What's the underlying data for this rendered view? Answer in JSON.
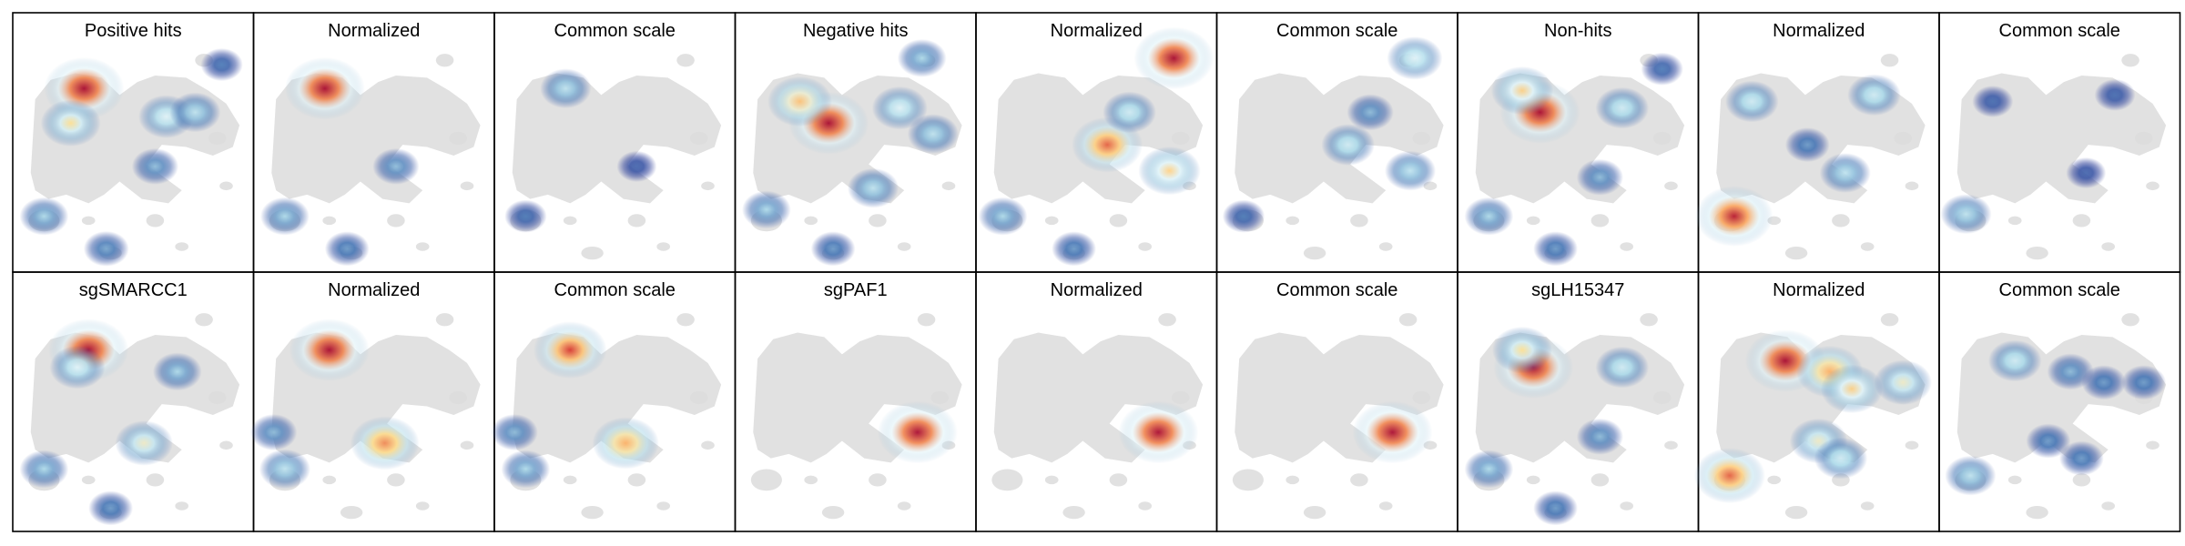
{
  "chart_data": {
    "type": "heatmap",
    "title": "",
    "grid": false,
    "colormap": "RdYlBu_r",
    "background_color": "#dcdcdc",
    "rows": [
      {
        "panels": [
          {
            "title": "Positive hits",
            "density": [
              [
                0.28,
                0.19,
                1.0
              ],
              [
                0.22,
                0.35,
                0.55
              ],
              [
                0.65,
                0.32,
                0.45
              ],
              [
                0.78,
                0.3,
                0.35
              ],
              [
                0.6,
                0.55,
                0.25
              ],
              [
                0.1,
                0.78,
                0.3
              ],
              [
                0.38,
                0.93,
                0.22
              ],
              [
                0.9,
                0.08,
                0.15
              ]
            ]
          },
          {
            "title": "Normalized",
            "density": [
              [
                0.28,
                0.19,
                1.0
              ],
              [
                0.1,
                0.78,
                0.3
              ],
              [
                0.6,
                0.55,
                0.25
              ],
              [
                0.38,
                0.93,
                0.2
              ]
            ]
          },
          {
            "title": "Common scale",
            "density": [
              [
                0.28,
                0.19,
                0.35
              ],
              [
                0.1,
                0.78,
                0.15
              ],
              [
                0.6,
                0.55,
                0.1
              ]
            ]
          },
          {
            "title": "Negative hits",
            "density": [
              [
                0.38,
                0.35,
                1.0
              ],
              [
                0.25,
                0.25,
                0.65
              ],
              [
                0.7,
                0.28,
                0.45
              ],
              [
                0.8,
                0.05,
                0.3
              ],
              [
                0.58,
                0.65,
                0.35
              ],
              [
                0.1,
                0.75,
                0.3
              ],
              [
                0.4,
                0.93,
                0.2
              ],
              [
                0.85,
                0.4,
                0.35
              ]
            ]
          },
          {
            "title": "Normalized",
            "density": [
              [
                0.85,
                0.05,
                1.0
              ],
              [
                0.55,
                0.45,
                0.8
              ],
              [
                0.83,
                0.57,
                0.6
              ],
              [
                0.65,
                0.3,
                0.4
              ],
              [
                0.08,
                0.78,
                0.3
              ],
              [
                0.4,
                0.93,
                0.2
              ]
            ]
          },
          {
            "title": "Common scale",
            "density": [
              [
                0.85,
                0.05,
                0.45
              ],
              [
                0.55,
                0.45,
                0.4
              ],
              [
                0.83,
                0.57,
                0.35
              ],
              [
                0.65,
                0.3,
                0.25
              ],
              [
                0.08,
                0.78,
                0.15
              ]
            ]
          },
          {
            "title": "Non-hits",
            "density": [
              [
                0.33,
                0.3,
                1.0
              ],
              [
                0.25,
                0.2,
                0.6
              ],
              [
                0.7,
                0.28,
                0.4
              ],
              [
                0.6,
                0.6,
                0.25
              ],
              [
                0.1,
                0.78,
                0.3
              ],
              [
                0.4,
                0.93,
                0.2
              ],
              [
                0.88,
                0.1,
                0.15
              ]
            ]
          },
          {
            "title": "Normalized",
            "density": [
              [
                0.12,
                0.78,
                0.95
              ],
              [
                0.2,
                0.25,
                0.4
              ],
              [
                0.75,
                0.22,
                0.4
              ],
              [
                0.62,
                0.58,
                0.35
              ],
              [
                0.45,
                0.45,
                0.2
              ]
            ]
          },
          {
            "title": "Common scale",
            "density": [
              [
                0.08,
                0.77,
                0.35
              ],
              [
                0.2,
                0.25,
                0.12
              ],
              [
                0.75,
                0.22,
                0.12
              ],
              [
                0.62,
                0.58,
                0.1
              ]
            ]
          }
        ]
      },
      {
        "panels": [
          {
            "title": "sgSMARCC1",
            "density": [
              [
                0.3,
                0.2,
                1.0
              ],
              [
                0.25,
                0.28,
                0.45
              ],
              [
                0.7,
                0.3,
                0.3
              ],
              [
                0.55,
                0.63,
                0.5
              ],
              [
                0.1,
                0.75,
                0.3
              ],
              [
                0.4,
                0.93,
                0.2
              ]
            ]
          },
          {
            "title": "Normalized",
            "density": [
              [
                0.3,
                0.2,
                1.0
              ],
              [
                0.55,
                0.63,
                0.75
              ],
              [
                0.1,
                0.75,
                0.35
              ],
              [
                0.05,
                0.58,
                0.25
              ]
            ]
          },
          {
            "title": "Common scale",
            "density": [
              [
                0.3,
                0.2,
                0.85
              ],
              [
                0.55,
                0.63,
                0.7
              ],
              [
                0.1,
                0.75,
                0.3
              ],
              [
                0.05,
                0.58,
                0.25
              ]
            ]
          },
          {
            "title": "sgPAF1",
            "density": [
              [
                0.78,
                0.58,
                1.0
              ]
            ]
          },
          {
            "title": "Normalized",
            "density": [
              [
                0.78,
                0.58,
                1.0
              ]
            ]
          },
          {
            "title": "Common scale",
            "density": [
              [
                0.75,
                0.58,
                1.0
              ]
            ]
          },
          {
            "title": "sgLH15347",
            "density": [
              [
                0.3,
                0.28,
                1.0
              ],
              [
                0.25,
                0.2,
                0.55
              ],
              [
                0.7,
                0.28,
                0.4
              ],
              [
                0.6,
                0.6,
                0.25
              ],
              [
                0.1,
                0.75,
                0.3
              ],
              [
                0.4,
                0.93,
                0.2
              ]
            ]
          },
          {
            "title": "Normalized",
            "density": [
              [
                0.35,
                0.25,
                1.0
              ],
              [
                0.55,
                0.3,
                0.7
              ],
              [
                0.65,
                0.38,
                0.6
              ],
              [
                0.88,
                0.35,
                0.5
              ],
              [
                0.1,
                0.78,
                0.8
              ],
              [
                0.5,
                0.62,
                0.5
              ],
              [
                0.6,
                0.7,
                0.4
              ]
            ]
          },
          {
            "title": "Common scale",
            "density": [
              [
                0.3,
                0.25,
                0.4
              ],
              [
                0.55,
                0.3,
                0.25
              ],
              [
                0.7,
                0.35,
                0.2
              ],
              [
                0.88,
                0.35,
                0.2
              ],
              [
                0.1,
                0.78,
                0.35
              ],
              [
                0.45,
                0.62,
                0.2
              ],
              [
                0.6,
                0.7,
                0.2
              ]
            ]
          }
        ]
      }
    ]
  }
}
